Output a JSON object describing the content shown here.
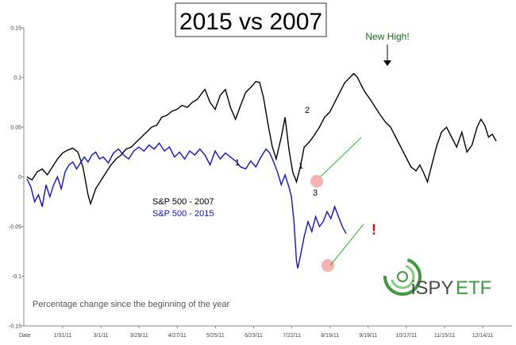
{
  "chart_data": {
    "type": "line",
    "title": "2015 vs 2007",
    "subtitle": "Percentage change since the beginning of the year",
    "xlabel": "Date",
    "ylabel": "",
    "categories": [
      "1/31/11",
      "3/1/11",
      "3/29/11",
      "4/27/11",
      "5/25/11",
      "6/23/11",
      "7/22/11",
      "8/19/11",
      "9/19/11",
      "10/17/11",
      "11/15/11",
      "12/14/11"
    ],
    "yticks": [
      "0.15",
      "0.1",
      "0.05",
      "0",
      "-0.05",
      "-0.1",
      "-0.15"
    ],
    "ylim": [
      -0.15,
      0.15
    ],
    "grid": false,
    "legend_placement": "center-left",
    "series": [
      {
        "name": "S&P 500 - 2007",
        "color": "#000000",
        "points": [
          [
            0,
            0
          ],
          [
            4,
            -0.003
          ],
          [
            8,
            0.005
          ],
          [
            12,
            0.008
          ],
          [
            16,
            0.002
          ],
          [
            20,
            0.01
          ],
          [
            24,
            0.018
          ],
          [
            28,
            0.024
          ],
          [
            32,
            0.027
          ],
          [
            36,
            0.029
          ],
          [
            40,
            0.025
          ],
          [
            44,
            0.01
          ],
          [
            48,
            -0.018
          ],
          [
            50,
            -0.027
          ],
          [
            54,
            -0.012
          ],
          [
            58,
            -0.004
          ],
          [
            62,
            0.004
          ],
          [
            66,
            0.012
          ],
          [
            70,
            0.018
          ],
          [
            74,
            0.022
          ],
          [
            78,
            0.028
          ],
          [
            82,
            0.03
          ],
          [
            86,
            0.035
          ],
          [
            90,
            0.04
          ],
          [
            94,
            0.045
          ],
          [
            98,
            0.05
          ],
          [
            102,
            0.052
          ],
          [
            106,
            0.06
          ],
          [
            110,
            0.062
          ],
          [
            114,
            0.066
          ],
          [
            118,
            0.068
          ],
          [
            122,
            0.072
          ],
          [
            126,
            0.07
          ],
          [
            130,
            0.075
          ],
          [
            134,
            0.078
          ],
          [
            138,
            0.085
          ],
          [
            140,
            0.088
          ],
          [
            144,
            0.075
          ],
          [
            148,
            0.068
          ],
          [
            152,
            0.082
          ],
          [
            156,
            0.088
          ],
          [
            160,
            0.07
          ],
          [
            164,
            0.058
          ],
          [
            168,
            0.072
          ],
          [
            172,
            0.085
          ],
          [
            176,
            0.09
          ],
          [
            180,
            0.096
          ],
          [
            183,
            0.095
          ],
          [
            186,
            0.08
          ],
          [
            190,
            0.05
          ],
          [
            193,
            0.03
          ],
          [
            196,
            0.018
          ],
          [
            200,
            0.04
          ],
          [
            203,
            0.06
          ],
          [
            206,
            0.028
          ],
          [
            209,
            0.005
          ],
          [
            212,
            -0.005
          ],
          [
            215,
            0.01
          ],
          [
            218,
            0.03
          ],
          [
            222,
            0.035
          ],
          [
            226,
            0.042
          ],
          [
            230,
            0.05
          ],
          [
            234,
            0.06
          ],
          [
            238,
            0.065
          ],
          [
            242,
            0.075
          ],
          [
            246,
            0.085
          ],
          [
            250,
            0.095
          ],
          [
            254,
            0.1
          ],
          [
            257,
            0.104
          ],
          [
            260,
            0.1
          ],
          [
            263,
            0.092
          ],
          [
            266,
            0.085
          ],
          [
            270,
            0.078
          ],
          [
            274,
            0.07
          ],
          [
            278,
            0.062
          ],
          [
            282,
            0.055
          ],
          [
            286,
            0.05
          ],
          [
            290,
            0.04
          ],
          [
            294,
            0.03
          ],
          [
            298,
            0.02
          ],
          [
            302,
            0.01
          ],
          [
            306,
            0.006
          ],
          [
            309,
            0.012
          ],
          [
            312,
            0.004
          ],
          [
            315,
            -0.005
          ],
          [
            318,
            0.01
          ],
          [
            322,
            0.03
          ],
          [
            326,
            0.045
          ],
          [
            330,
            0.05
          ],
          [
            334,
            0.04
          ],
          [
            338,
            0.03
          ],
          [
            342,
            0.045
          ],
          [
            346,
            0.025
          ],
          [
            350,
            0.032
          ],
          [
            354,
            0.05
          ],
          [
            357,
            0.058
          ],
          [
            360,
            0.052
          ],
          [
            363,
            0.04
          ],
          [
            366,
            0.043
          ],
          [
            369,
            0.036
          ]
        ]
      },
      {
        "name": "S&P 500 - 2015",
        "color": "#1010e0",
        "points": [
          [
            0,
            -0.002
          ],
          [
            3,
            -0.01
          ],
          [
            6,
            -0.025
          ],
          [
            9,
            -0.018
          ],
          [
            12,
            -0.03
          ],
          [
            15,
            -0.008
          ],
          [
            18,
            -0.02
          ],
          [
            21,
            -0.008
          ],
          [
            24,
            0.0
          ],
          [
            27,
            -0.012
          ],
          [
            30,
            0.005
          ],
          [
            33,
            0.012
          ],
          [
            36,
            0.015
          ],
          [
            39,
            0.008
          ],
          [
            42,
            0.014
          ],
          [
            45,
            0.02
          ],
          [
            48,
            0.015
          ],
          [
            51,
            0.022
          ],
          [
            54,
            0.025
          ],
          [
            57,
            0.018
          ],
          [
            60,
            0.02
          ],
          [
            64,
            0.014
          ],
          [
            68,
            0.024
          ],
          [
            72,
            0.028
          ],
          [
            76,
            0.022
          ],
          [
            80,
            0.018
          ],
          [
            84,
            0.026
          ],
          [
            88,
            0.03
          ],
          [
            92,
            0.026
          ],
          [
            96,
            0.032
          ],
          [
            100,
            0.028
          ],
          [
            104,
            0.034
          ],
          [
            108,
            0.026
          ],
          [
            112,
            0.03
          ],
          [
            116,
            0.02
          ],
          [
            120,
            0.025
          ],
          [
            124,
            0.018
          ],
          [
            128,
            0.026
          ],
          [
            132,
            0.022
          ],
          [
            136,
            0.028
          ],
          [
            140,
            0.022
          ],
          [
            144,
            0.012
          ],
          [
            148,
            0.026
          ],
          [
            152,
            0.018
          ],
          [
            156,
            0.024
          ],
          [
            160,
            0.02
          ],
          [
            164,
            0.016
          ],
          [
            168,
            0.01
          ],
          [
            172,
            0.008
          ],
          [
            176,
            0.016
          ],
          [
            180,
            0.01
          ],
          [
            184,
            0.02
          ],
          [
            188,
            0.028
          ],
          [
            191,
            0.024
          ],
          [
            194,
            0.015
          ],
          [
            197,
            0.005
          ],
          [
            200,
            -0.008
          ],
          [
            203,
            0.002
          ],
          [
            206,
            -0.01
          ],
          [
            208,
            -0.02
          ],
          [
            210,
            -0.045
          ],
          [
            212,
            -0.085
          ],
          [
            213,
            -0.092
          ],
          [
            215,
            -0.08
          ],
          [
            218,
            -0.06
          ],
          [
            221,
            -0.045
          ],
          [
            224,
            -0.055
          ],
          [
            227,
            -0.04
          ],
          [
            230,
            -0.05
          ],
          [
            233,
            -0.045
          ],
          [
            236,
            -0.035
          ],
          [
            239,
            -0.042
          ],
          [
            242,
            -0.03
          ],
          [
            245,
            -0.04
          ],
          [
            248,
            -0.05
          ],
          [
            251,
            -0.057
          ]
        ]
      }
    ],
    "annotations": [
      {
        "text": "New High!",
        "color": "#1e6b1e"
      },
      {
        "text": "2"
      },
      {
        "text": "1"
      },
      {
        "text": "1"
      },
      {
        "text": "3"
      },
      {
        "text": "!",
        "color": "#e00000"
      }
    ]
  },
  "logo": {
    "prefix": "iSPY",
    "suffix": "ETF"
  },
  "colors": {
    "trendline": "#2eb82e",
    "highlight": "#f4a3a3",
    "axis": "#888888"
  }
}
